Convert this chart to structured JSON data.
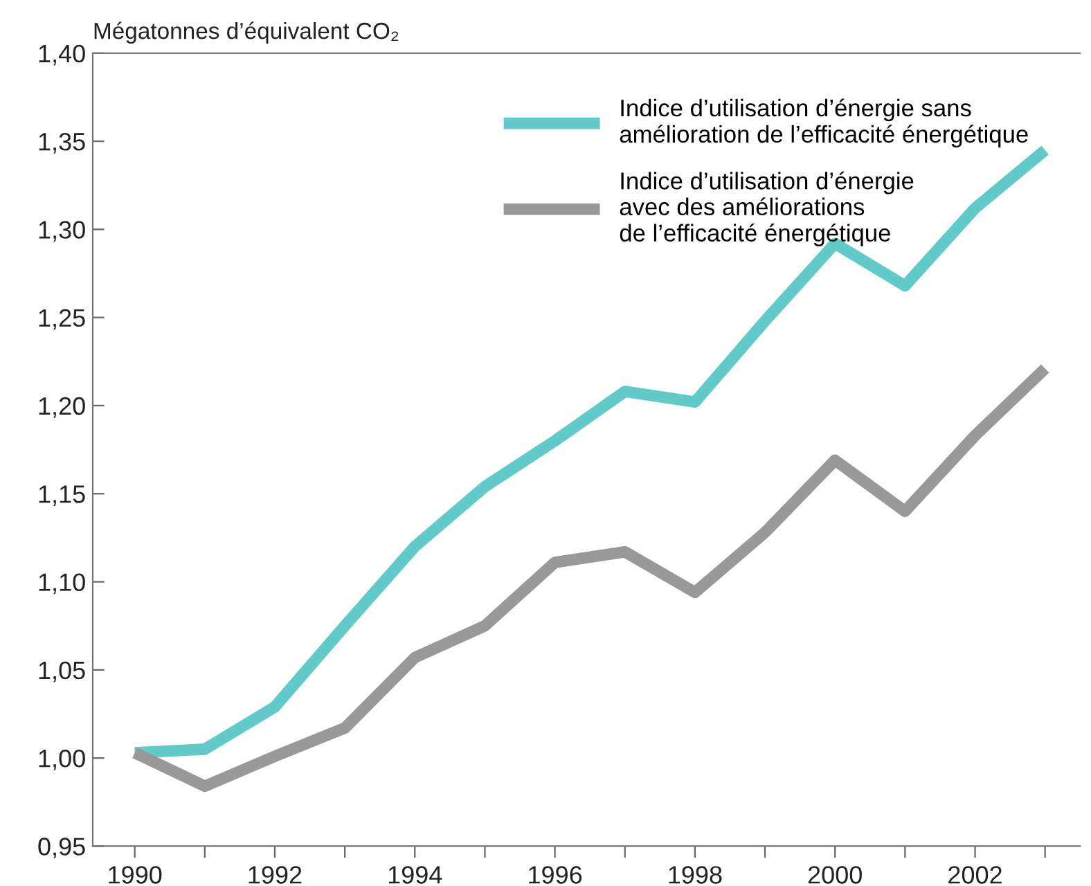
{
  "chart_data": {
    "type": "line",
    "ylabel": "Mégatonnes d’équivalent CO₂",
    "x": [
      1990,
      1991,
      1992,
      1993,
      1994,
      1995,
      1996,
      1997,
      1998,
      1999,
      2000,
      2001,
      2002,
      2003
    ],
    "series": [
      {
        "name": "Indice d’utilisation d’énergie sans\namélioration de l’efficacité énergétique",
        "color": "#62cbc9",
        "values": [
          1.003,
          1.005,
          1.029,
          1.075,
          1.12,
          1.154,
          1.18,
          1.208,
          1.202,
          1.248,
          1.292,
          1.268,
          1.312,
          1.345
        ]
      },
      {
        "name": "Indice d’utilisation d’énergie\navec des améliorations\nde l’efficacité énergétique",
        "color": "#999999",
        "values": [
          1.003,
          0.984,
          1.001,
          1.017,
          1.057,
          1.075,
          1.111,
          1.117,
          1.094,
          1.128,
          1.169,
          1.14,
          1.183,
          1.221
        ]
      }
    ],
    "xlim": [
      1989.4,
      2003.5
    ],
    "xticks": [
      1990,
      {
        "value": 1991,
        "label": null
      },
      1992,
      {
        "value": 1993,
        "label": null
      },
      1994,
      {
        "value": 1995,
        "label": null
      },
      1996,
      {
        "value": 1997,
        "label": null
      },
      1998,
      {
        "value": 1999,
        "label": null
      },
      2000,
      {
        "value": 2001,
        "label": null
      },
      2002,
      {
        "value": 2003,
        "label": null
      }
    ],
    "ylim": [
      0.95,
      1.4
    ],
    "yticks": [
      {
        "value": 0.95,
        "label": "0,95"
      },
      {
        "value": 1.0,
        "label": "1,00"
      },
      {
        "value": 1.05,
        "label": "1,05"
      },
      {
        "value": 1.1,
        "label": "1,10"
      },
      {
        "value": 1.15,
        "label": "1,15"
      },
      {
        "value": 1.2,
        "label": "1,20"
      },
      {
        "value": 1.25,
        "label": "1,25"
      },
      {
        "value": 1.3,
        "label": "1,30"
      },
      {
        "value": 1.35,
        "label": "1,35"
      },
      {
        "value": 1.4,
        "label": "1,40"
      }
    ],
    "grid": false,
    "legend": "top right",
    "marker": "none",
    "line_style": "solid"
  }
}
